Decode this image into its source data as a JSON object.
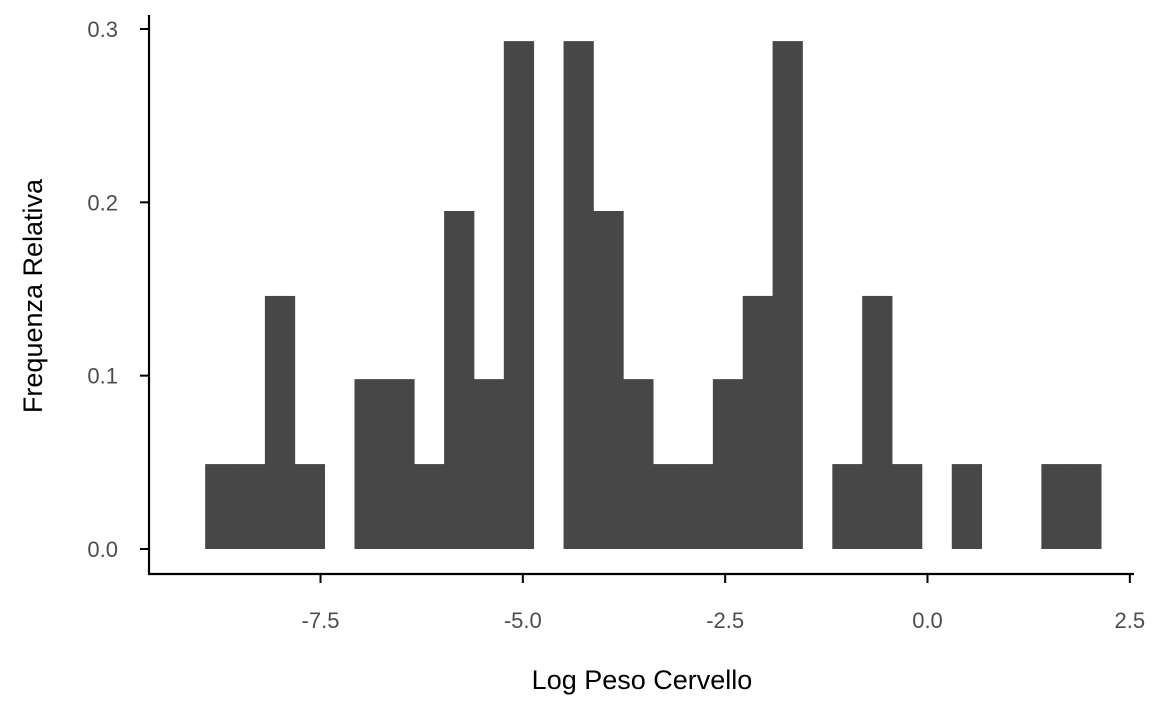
{
  "chart_data": {
    "type": "bar",
    "subtype": "histogram",
    "title": "",
    "xlabel": "Log Peso Cervello",
    "ylabel": "Frequenza Relativa",
    "xlim": [
      -9.3,
      2.5
    ],
    "ylim": [
      0,
      0.3
    ],
    "xticks": [
      -7.5,
      -5.0,
      -2.5,
      0.0,
      2.5
    ],
    "xtick_labels": [
      "-7.5",
      "-5.0",
      "-2.5",
      "0.0",
      "2.5"
    ],
    "yticks": [
      0.0,
      0.1,
      0.2,
      0.3
    ],
    "ytick_labels": [
      "0.0",
      "0.1",
      "0.2",
      "0.3"
    ],
    "grid": false,
    "bar_color": "#474747",
    "bins": [
      {
        "x0": -8.925,
        "x1": -8.556,
        "value": 0.049
      },
      {
        "x0": -8.556,
        "x1": -8.187,
        "value": 0.049
      },
      {
        "x0": -8.187,
        "x1": -7.818,
        "value": 0.146
      },
      {
        "x0": -7.818,
        "x1": -7.449,
        "value": 0.049
      },
      {
        "x0": -7.449,
        "x1": -7.08,
        "value": 0.0
      },
      {
        "x0": -7.08,
        "x1": -6.711,
        "value": 0.098
      },
      {
        "x0": -6.711,
        "x1": -6.342,
        "value": 0.098
      },
      {
        "x0": -6.342,
        "x1": -5.973,
        "value": 0.049
      },
      {
        "x0": -5.973,
        "x1": -5.604,
        "value": 0.195
      },
      {
        "x0": -5.604,
        "x1": -5.235,
        "value": 0.098
      },
      {
        "x0": -5.235,
        "x1": -4.866,
        "value": 0.293
      },
      {
        "x0": -4.866,
        "x1": -4.497,
        "value": 0.0
      },
      {
        "x0": -4.497,
        "x1": -4.128,
        "value": 0.293
      },
      {
        "x0": -4.128,
        "x1": -3.759,
        "value": 0.195
      },
      {
        "x0": -3.759,
        "x1": -3.39,
        "value": 0.098
      },
      {
        "x0": -3.39,
        "x1": -3.021,
        "value": 0.049
      },
      {
        "x0": -3.021,
        "x1": -2.652,
        "value": 0.049
      },
      {
        "x0": -2.652,
        "x1": -2.283,
        "value": 0.098
      },
      {
        "x0": -2.283,
        "x1": -1.914,
        "value": 0.146
      },
      {
        "x0": -1.914,
        "x1": -1.545,
        "value": 0.293
      },
      {
        "x0": -1.545,
        "x1": -1.176,
        "value": 0.0
      },
      {
        "x0": -1.176,
        "x1": -0.807,
        "value": 0.049
      },
      {
        "x0": -0.807,
        "x1": -0.438,
        "value": 0.146
      },
      {
        "x0": -0.438,
        "x1": -0.069,
        "value": 0.049
      },
      {
        "x0": -0.069,
        "x1": 0.3,
        "value": 0.0
      },
      {
        "x0": 0.3,
        "x1": 0.669,
        "value": 0.049
      },
      {
        "x0": 0.669,
        "x1": 1.038,
        "value": 0.0
      },
      {
        "x0": 1.038,
        "x1": 1.407,
        "value": 0.0
      },
      {
        "x0": 1.407,
        "x1": 1.776,
        "value": 0.049
      },
      {
        "x0": 1.776,
        "x1": 2.145,
        "value": 0.049
      }
    ]
  }
}
